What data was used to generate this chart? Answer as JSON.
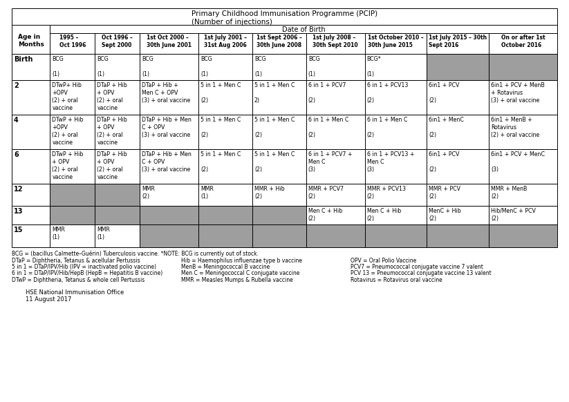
{
  "title_line1": "Primary Childhood Immunisation Programme (PCIP)",
  "title_line2": "(Number of injections)",
  "subtitle": "Date of Birth",
  "col_headers": [
    "Age in\nMonths",
    "1995 –\nOct 1996",
    "Oct 1996 –\nSept 2000",
    "1st Oct 2000 –\n30th June 2001",
    "1st July 2001 –\n31st Aug 2006",
    "1st Sept 2006 –\n30th June 2008",
    "1st July 2008 –\n30th Sept 2010",
    "1st October 2010 –\n30th June 2015",
    "1st July 2015 – 30th\nSept 2016",
    "On or after 1st\nOctober 2016"
  ],
  "rows": [
    {
      "age": "Birth",
      "cells": [
        "BCG\n\n(1)",
        "BCG\n\n(1)",
        "BCG\n\n(1)",
        "BCG\n\n(1)",
        "BCG\n\n(1)",
        "BCG\n\n(1)",
        "BCG*\n\n(1)",
        "",
        ""
      ],
      "gray": [
        false,
        false,
        false,
        false,
        false,
        false,
        false,
        true,
        true
      ]
    },
    {
      "age": "2",
      "cells": [
        "DTwP+ Hib\n+OPV\n(2) + oral\nvaccine",
        "DTaP + Hib\n+ OPV\n(2) + oral\nvaccine",
        "DTaP + Hib +\nMen C + OPV\n(3) + oral vaccine",
        "5 in 1 + Men C\n\n(2)",
        "5 in 1 + Men C\n\n2)",
        "6 in 1 + PCV7\n\n(2)",
        "6 in 1 + PCV13\n\n(2)",
        "6in1 + PCV\n\n(2)",
        "6in1 + PCV + MenB\n+ Rotavirus\n(3) + oral vaccine"
      ],
      "gray": [
        false,
        false,
        false,
        false,
        false,
        false,
        false,
        false,
        false
      ]
    },
    {
      "age": "4",
      "cells": [
        "DTwP + Hib\n+OPV\n(2) + oral\nvaccine",
        "DTaP + Hib\n+ OPV\n(2) + oral\nvaccine",
        "DTaP + Hib + Men\nC + OPV\n(3) + oral vaccine",
        "5 in 1 + Men C\n\n(2)",
        "5 in 1 + Men C\n\n(2)",
        "6 in 1 + Men C\n\n(2)",
        "6 in 1 + Men C\n\n(2)",
        "6in1 + MenC\n\n(2)",
        "6in1 + MenB +\nRotavirus\n(2) + oral vaccine"
      ],
      "gray": [
        false,
        false,
        false,
        false,
        false,
        false,
        false,
        false,
        false
      ]
    },
    {
      "age": "6",
      "cells": [
        "DTwP + Hib\n+ OPV\n(2) + oral\nvaccine",
        "DTaP + Hib\n+ OPV\n(2) + oral\nvaccine",
        "DTaP + Hib + Men\nC + OPV\n(3) + oral vaccine",
        "5 in 1 + Men C\n\n(2)",
        "5 in 1 + Men C\n\n(2)",
        "6 in 1 + PCV7 +\nMen C\n(3)",
        "6 in 1 + PCV13 +\nMen C\n(3)",
        "6in1 + PCV\n\n(2)",
        "6in1 + PCV + MenC\n\n(3)"
      ],
      "gray": [
        false,
        false,
        false,
        false,
        false,
        false,
        false,
        false,
        false
      ]
    },
    {
      "age": "12",
      "cells": [
        "",
        "",
        "MMR\n(2)",
        "MMR\n(1)",
        "MMR + Hib\n(2)",
        "MMR + PCV7\n(2)",
        "MMR + PCV13\n(2)",
        "MMR + PCV\n(2)",
        "MMR + MenB\n(2)"
      ],
      "gray": [
        true,
        true,
        false,
        false,
        false,
        false,
        false,
        false,
        false
      ]
    },
    {
      "age": "13",
      "cells": [
        "",
        "",
        "",
        "",
        "",
        "Men C + Hib\n(2)",
        "Men C + Hib\n(2)",
        "MenC + Hib\n(2)",
        "Hib/MenC + PCV\n(2)"
      ],
      "gray": [
        true,
        true,
        true,
        true,
        true,
        false,
        false,
        false,
        false
      ]
    },
    {
      "age": "15",
      "cells": [
        "MMR\n(1)",
        "MMR\n(1)",
        "",
        "",
        "",
        "",
        "",
        "",
        ""
      ],
      "gray": [
        false,
        false,
        true,
        true,
        true,
        true,
        true,
        true,
        true
      ]
    }
  ],
  "footnote_col1": [
    "BCG = (bacillus Calmette–Guérin) Tuberculosis vaccine. *NOTE: BCG is currently out of stock.",
    "DTaP = Diphtheria, Tetanus & acellular Pertussis",
    "5 in 1 = DTaP/IPV/Hib (IPV = inactivated polio vaccine)",
    "6 in 1 = DTaP/IPV/Hib/HepB (HepB = Hepatitis B vaccine)",
    "DTwP = Diphtheria, Tetanus & whole cell Pertussis"
  ],
  "footnote_col2": [
    "",
    "Hib = Haemophilus influenzae type b vaccine",
    "MenB = Meningococcal B vaccine",
    "Men C = Meningococcal C conjugate vaccine",
    "MMR = Measles Mumps & Rubella vaccine"
  ],
  "footnote_col3": [
    "",
    "OPV = Oral Polio Vaccine",
    "PCV7 = Pneumococcal conjugate vaccine 7 valent",
    "PCV 13 = Pneumococcal conjugate vaccine 13 valent",
    "Rotavirus = Rotavirus oral vaccine"
  ],
  "footer_line1": "HSE National Immunisation Office",
  "footer_line2": "11 August 2017",
  "bg_color": "#ffffff",
  "gray_color": "#9e9e9e",
  "border_color": "#000000"
}
